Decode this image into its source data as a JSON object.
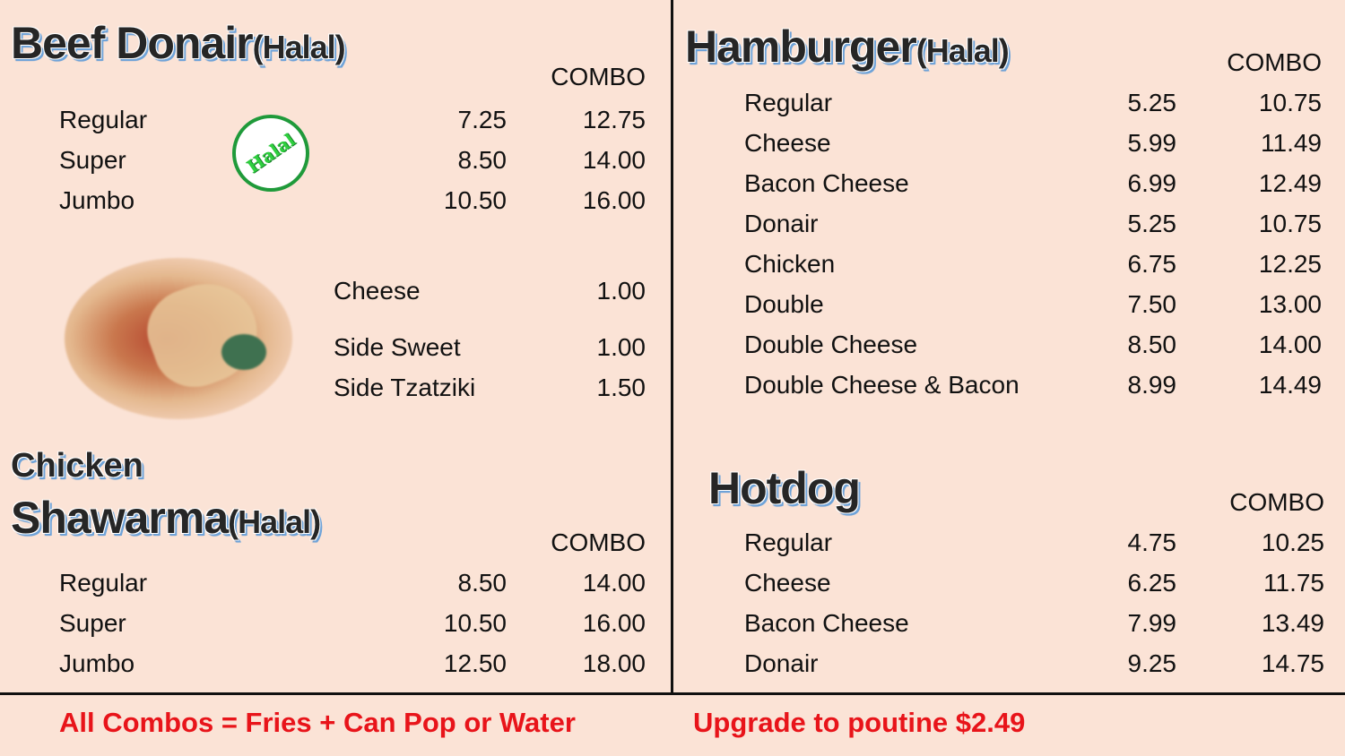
{
  "beef_donair": {
    "title": "Beef Donair",
    "tag": "(Halal)",
    "combo_label": "COMBO",
    "halal_badge": "Halal",
    "items": [
      {
        "name": "Regular",
        "price": "7.25",
        "combo": "12.75"
      },
      {
        "name": "Super",
        "price": "8.50",
        "combo": "14.00"
      },
      {
        "name": "Jumbo",
        "price": "10.50",
        "combo": "16.00"
      }
    ],
    "extras": [
      {
        "name": "Cheese",
        "price": "1.00"
      },
      {
        "name": "Side Sweet",
        "price": "1.00"
      },
      {
        "name": "Side Tzatziki",
        "price": "1.50"
      }
    ]
  },
  "chicken_shawarma": {
    "title_line1": "Chicken",
    "title_line2": "Shawarma",
    "tag": "(Halal)",
    "combo_label": "COMBO",
    "items": [
      {
        "name": "Regular",
        "price": "8.50",
        "combo": "14.00"
      },
      {
        "name": "Super",
        "price": "10.50",
        "combo": "16.00"
      },
      {
        "name": "Jumbo",
        "price": "12.50",
        "combo": "18.00"
      }
    ]
  },
  "hamburger": {
    "title": "Hamburger",
    "tag": "(Halal)",
    "combo_label": "COMBO",
    "items": [
      {
        "name": "Regular",
        "price": "5.25",
        "combo": "10.75"
      },
      {
        "name": "Cheese",
        "price": "5.99",
        "combo": "11.49"
      },
      {
        "name": "Bacon Cheese",
        "price": "6.99",
        "combo": "12.49"
      },
      {
        "name": "Donair",
        "price": "5.25",
        "combo": "10.75"
      },
      {
        "name": "Chicken",
        "price": "6.75",
        "combo": "12.25"
      },
      {
        "name": "Double",
        "price": "7.50",
        "combo": "13.00"
      },
      {
        "name": "Double Cheese",
        "price": "8.50",
        "combo": "14.00"
      },
      {
        "name": "Double Cheese & Bacon",
        "price": "8.99",
        "combo": "14.49"
      }
    ]
  },
  "hotdog": {
    "title": "Hotdog",
    "combo_label": "COMBO",
    "items": [
      {
        "name": "Regular",
        "price": "4.75",
        "combo": "10.25"
      },
      {
        "name": "Cheese",
        "price": "6.25",
        "combo": "11.75"
      },
      {
        "name": "Bacon Cheese",
        "price": "7.99",
        "combo": "13.49"
      },
      {
        "name": "Donair",
        "price": "9.25",
        "combo": "14.75"
      }
    ]
  },
  "footer": {
    "combo_note": "All Combos = Fries + Can Pop or Water",
    "upgrade_note": "Upgrade to poutine $2.49"
  },
  "colors": {
    "background": "#fbe3d6",
    "footer_text": "#e8141a",
    "title_outline": "#6fa3d8",
    "halal_green": "#1f9a3a"
  }
}
